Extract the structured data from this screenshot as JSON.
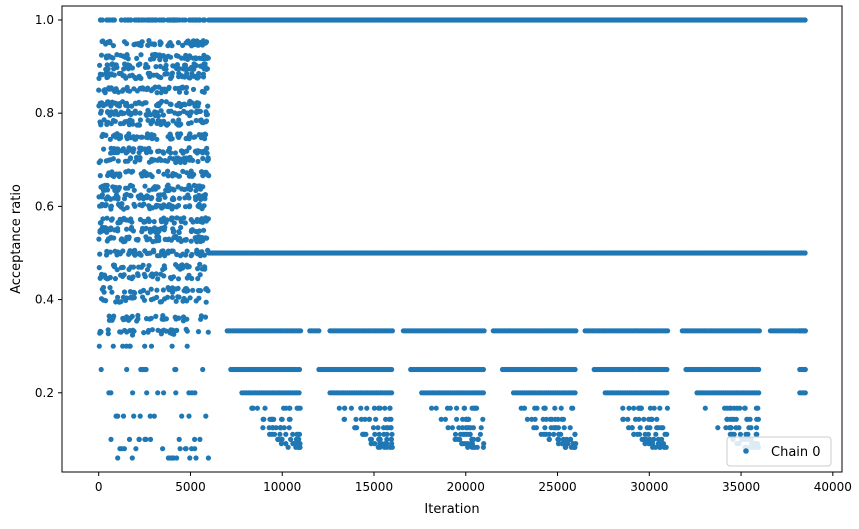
{
  "chart_data": {
    "type": "scatter",
    "title": "",
    "xlabel": "Iteration",
    "ylabel": "Acceptance ratio",
    "xlim": [
      -2000,
      40500
    ],
    "ylim": [
      0.03,
      1.03
    ],
    "xticks": [
      0,
      5000,
      10000,
      15000,
      20000,
      25000,
      30000,
      35000,
      40000
    ],
    "xtick_labels": [
      "0",
      "5000",
      "10000",
      "15000",
      "20000",
      "25000",
      "30000",
      "35000",
      "40000"
    ],
    "yticks": [
      0.2,
      0.4,
      0.6,
      0.8,
      1.0
    ],
    "ytick_labels": [
      "0.2",
      "0.4",
      "0.6",
      "0.8",
      "1.0"
    ],
    "grid": false,
    "legend_position": "lower-right",
    "marker_color": "#1f77b4",
    "series": [
      {
        "name": "Chain 0",
        "color": "#1f77b4",
        "marker": "circle",
        "description_segments": [
          {
            "x_range": [
              0,
              6000
            ],
            "y_levels": [
              0.06,
              0.08,
              0.1,
              0.15,
              0.2,
              0.25,
              0.3,
              0.33,
              0.36,
              0.4,
              0.42,
              0.45,
              0.47,
              0.5,
              0.53,
              0.55,
              0.57,
              0.6,
              0.62,
              0.64,
              0.67,
              0.7,
              0.72,
              0.75,
              0.78,
              0.8,
              0.82,
              0.85,
              0.88,
              0.9,
              0.92,
              0.95,
              1.0
            ]
          },
          {
            "x_range": [
              6000,
              38500
            ],
            "y_levels": [
              1.0,
              0.5
            ]
          },
          {
            "x_range": [
              7000,
              38500
            ],
            "y_levels": [
              0.333
            ]
          },
          {
            "x_range": [
              7000,
              38500
            ],
            "y_levels": [
              0.25,
              0.2,
              0.167,
              0.143,
              0.125,
              0.111,
              0.1,
              0.091,
              0.083
            ]
          }
        ]
      }
    ]
  }
}
